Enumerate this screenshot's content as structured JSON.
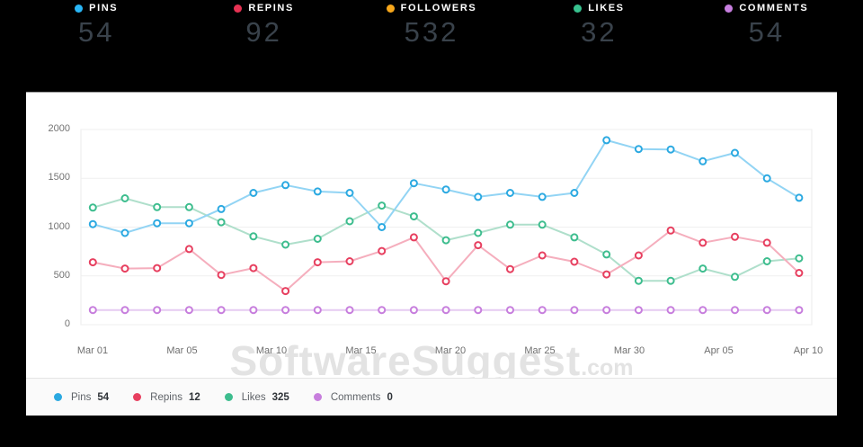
{
  "stats": [
    {
      "label": "PINS",
      "value": "54",
      "color": "#29b6f6"
    },
    {
      "label": "REPINS",
      "value": "92",
      "color": "#e73253"
    },
    {
      "label": "FOLLOWERS",
      "value": "532",
      "color": "#f7a71b"
    },
    {
      "label": "LIKES",
      "value": "32",
      "color": "#38c28f"
    },
    {
      "label": "COMMENTS",
      "value": "54",
      "color": "#c87fe0"
    }
  ],
  "watermark": {
    "text": "SoftwareSuggest",
    "suffix": ".com"
  },
  "chart_data": {
    "type": "line",
    "title": "",
    "xlabel": "",
    "ylabel": "",
    "ylim": [
      0,
      2000
    ],
    "yticks": [
      0,
      500,
      1000,
      1500,
      2000
    ],
    "grid": true,
    "legend_position": "bottom",
    "x_tick_labels": [
      "Mar 01",
      "Mar 05",
      "Mar 10",
      "Mar 15",
      "Mar 20",
      "Mar 25",
      "Mar 30",
      "Apr 05",
      "Apr 10"
    ],
    "series": [
      {
        "name": "Pins",
        "color": "#2ba9e1",
        "line_color": "#92d4f4",
        "values": [
          1030,
          940,
          1040,
          1040,
          1185,
          1350,
          1430,
          1365,
          1350,
          1000,
          1450,
          1385,
          1310,
          1350,
          1310,
          1350,
          1890,
          1800,
          1795,
          1675,
          1760,
          1500,
          1300
        ]
      },
      {
        "name": "Repins",
        "color": "#e73f5f",
        "line_color": "#f5aebd",
        "values": [
          640,
          575,
          580,
          775,
          510,
          580,
          345,
          640,
          650,
          755,
          895,
          445,
          815,
          570,
          710,
          645,
          515,
          710,
          965,
          840,
          900,
          840,
          530
        ]
      },
      {
        "name": "Likes",
        "color": "#3dbd8e",
        "line_color": "#afdfcb",
        "values": [
          1200,
          1295,
          1205,
          1205,
          1050,
          905,
          820,
          880,
          1060,
          1220,
          1110,
          865,
          940,
          1025,
          1025,
          895,
          720,
          450,
          450,
          575,
          490,
          650,
          680
        ]
      },
      {
        "name": "Comments",
        "color": "#c77edd",
        "line_color": "#e5cbf2",
        "values": [
          150,
          150,
          150,
          150,
          150,
          150,
          150,
          150,
          150,
          150,
          150,
          150,
          150,
          150,
          150,
          150,
          150,
          150,
          150,
          150,
          150,
          150,
          150
        ]
      }
    ]
  },
  "legend": [
    {
      "label": "Pins",
      "value": "54"
    },
    {
      "label": "Repins",
      "value": "12"
    },
    {
      "label": "Likes",
      "value": "325"
    },
    {
      "label": "Comments",
      "value": "0"
    }
  ]
}
